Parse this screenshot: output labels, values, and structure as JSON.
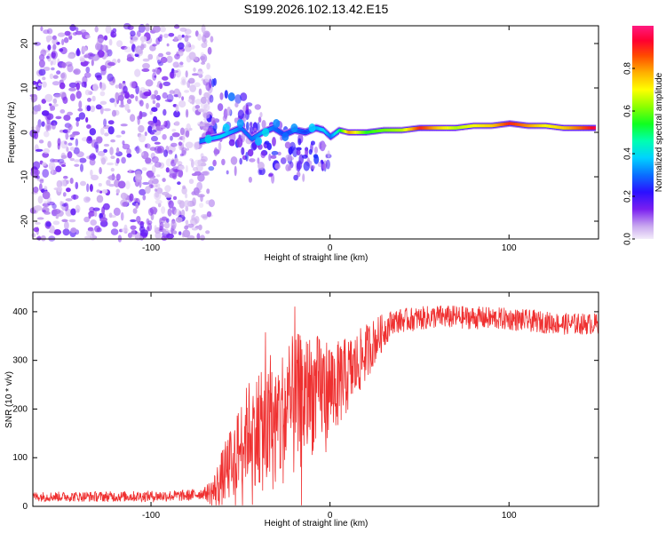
{
  "title": "S199.2026.102.13.42.E15",
  "chart_data": [
    {
      "type": "heatmap",
      "xlabel": "Height of straight line (km)",
      "ylabel": "Frequency (Hz)",
      "xlim": [
        -166,
        150
      ],
      "ylim": [
        -24,
        24
      ],
      "xticks": [
        -100,
        0,
        100
      ],
      "xtick_labels": [
        "-100",
        "0",
        "100"
      ],
      "yticks": [
        -20,
        -10,
        0,
        10,
        20
      ],
      "ytick_labels": [
        "-20",
        "-10",
        "0",
        "10",
        "20"
      ],
      "colorbar": {
        "label": "Normalized spectral amplitude",
        "range": [
          0,
          1
        ],
        "ticks": [
          0.0,
          0.2,
          0.4,
          0.6,
          0.8
        ],
        "tick_labels": [
          "0.0",
          "0.2",
          "0.4",
          "0.6",
          "0.8"
        ]
      },
      "ridge": {
        "x": [
          -73,
          -68,
          -62,
          -56,
          -50,
          -44,
          -38,
          -32,
          -26,
          -20,
          -14,
          -8,
          -4,
          0,
          5,
          10,
          20,
          30,
          40,
          50,
          60,
          70,
          80,
          90,
          100,
          110,
          120,
          130,
          140,
          148
        ],
        "freq": [
          -2,
          -1.5,
          -1,
          0,
          1,
          -1.5,
          0,
          1,
          -0.5,
          0.5,
          0,
          1,
          0.5,
          -1,
          0.5,
          0,
          0,
          0.5,
          0.5,
          1,
          1,
          1,
          1.5,
          1.5,
          2,
          1.5,
          1.5,
          1,
          1,
          1
        ],
        "amp": [
          0.3,
          0.35,
          0.4,
          0.35,
          0.3,
          0.3,
          0.35,
          0.3,
          0.25,
          0.3,
          0.25,
          0.35,
          0.4,
          0.3,
          0.5,
          0.8,
          0.55,
          0.6,
          0.65,
          0.9,
          0.75,
          0.65,
          0.7,
          0.75,
          0.9,
          0.8,
          0.7,
          0.75,
          0.85,
          0.95
        ]
      },
      "noise_region_x": [
        -166,
        -70
      ]
    },
    {
      "type": "line",
      "xlabel": "Height of straight line (km)",
      "ylabel": "SNR (10 * v/v)",
      "xlim": [
        -166,
        150
      ],
      "ylim": [
        0,
        440
      ],
      "xticks": [
        -100,
        0,
        100
      ],
      "xtick_labels": [
        "-100",
        "0",
        "100"
      ],
      "yticks": [
        0,
        100,
        200,
        300,
        400
      ],
      "ytick_labels": [
        "0",
        "100",
        "200",
        "300",
        "400"
      ],
      "color": "#ef3030",
      "trend": {
        "x": [
          -166,
          -120,
          -80,
          -65,
          -55,
          -45,
          -35,
          -25,
          -15,
          -5,
          5,
          15,
          25,
          35,
          60,
          100,
          130,
          150
        ],
        "snr": [
          20,
          20,
          22,
          30,
          90,
          160,
          150,
          190,
          220,
          240,
          250,
          290,
          340,
          380,
          390,
          385,
          375,
          375
        ]
      },
      "noise_amp_x": [
        -166,
        -70,
        -60,
        -40,
        -20,
        0,
        20,
        35,
        150
      ],
      "noise_amp": [
        10,
        12,
        60,
        120,
        150,
        100,
        60,
        25,
        22
      ]
    }
  ]
}
